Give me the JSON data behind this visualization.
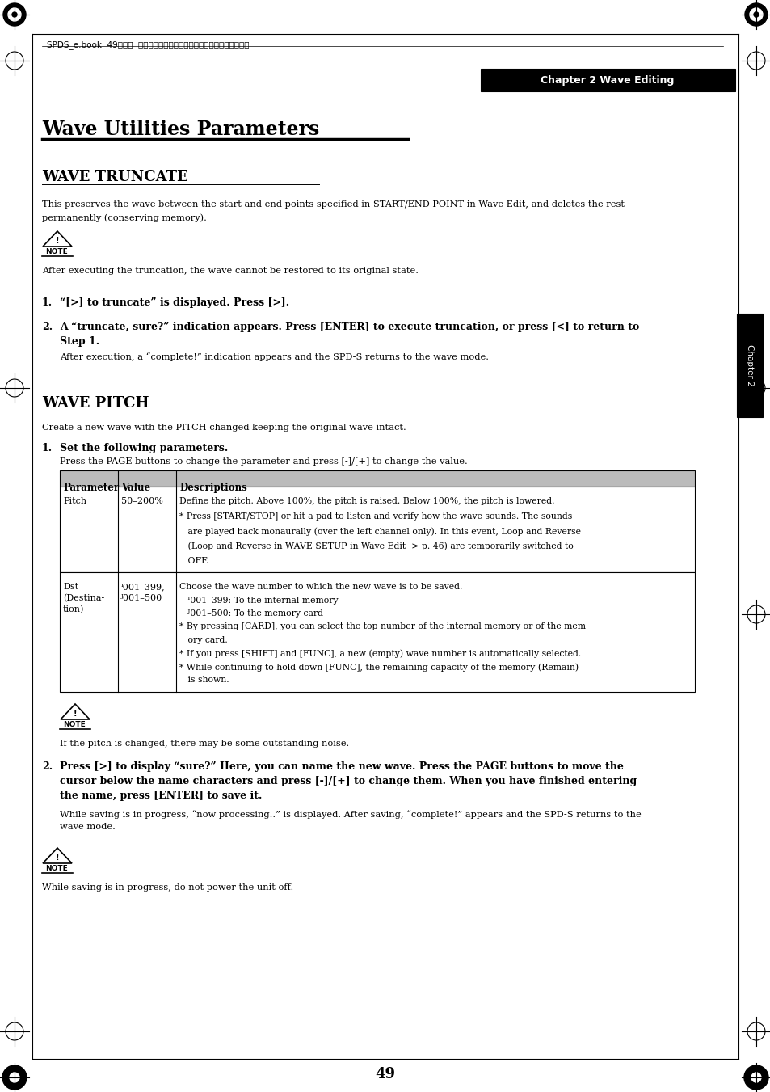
{
  "bg_color": "#ffffff",
  "page_number": "49",
  "header_text": "SPDS_e.book  49ページ  ２００４年４月１９日　月曜日　午前９時５８分",
  "chapter_box_text": "Chapter 2 Wave Editing",
  "chapter_sidebar_text": "Chapter 2",
  "page_title": "Wave Utilities Parameters",
  "section1_title": "WAVE TRUNCATE",
  "section1_body": "This preserves the wave between the start and end points specified in START/END POINT in Wave Edit, and deletes the rest\npermanently (conserving memory).",
  "note1_text": "After executing the truncation, the wave cannot be restored to its original state.",
  "step1_text": "“[>] to truncate” is displayed. Press [>].",
  "step2_text": "A “truncate, sure?” indication appears. Press [ENTER] to execute truncation, or press [<] to return to",
  "step2_text2": "Step 1.",
  "step2_body": "After execution, a “complete!” indication appears and the SPD-S returns to the wave mode.",
  "section2_title": "WAVE PITCH",
  "section2_body": "Create a new wave with the PITCH changed keeping the original wave intact.",
  "step3_text": "Set the following parameters.",
  "step3_body": "Press the PAGE buttons to change the parameter and press [-]/[+] to change the value.",
  "table_headers": [
    "Parameter",
    "Value",
    "Descriptions"
  ],
  "table_row1_col1": "Pitch",
  "table_row1_col2": "50–200%",
  "table_row1_col3_lines": [
    "Define the pitch. Above 100%, the pitch is raised. Below 100%, the pitch is lowered.",
    "* Press [START/STOP] or hit a pad to listen and verify how the wave sounds. The sounds",
    "   are played back monaurally (over the left channel only). In this event, Loop and Reverse",
    "   (Loop and Reverse in WAVE SETUP in Wave Edit -> p. 46) are temporarily switched to",
    "   OFF."
  ],
  "table_row2_col1_lines": [
    "Dst",
    "(Destina-",
    "tion)"
  ],
  "table_row2_col2_lines": [
    "ᴵ001–399,",
    "ᴶ001–500"
  ],
  "table_row2_col3_lines": [
    "Choose the wave number to which the new wave is to be saved.",
    "   ᴵ001–399: To the internal memory",
    "   ᴶ001–500: To the memory card",
    "* By pressing [CARD], you can select the top number of the internal memory or of the mem-",
    "   ory card.",
    "* If you press [SHIFT] and [FUNC], a new (empty) wave number is automatically selected.",
    "* While continuing to hold down [FUNC], the remaining capacity of the memory (Remain)",
    "   is shown."
  ],
  "note2_text": "If the pitch is changed, there may be some outstanding noise.",
  "step4_text_lines": [
    "Press [>] to display “sure?” Here, you can name the new wave. Press the PAGE buttons to move the",
    "cursor below the name characters and press [-]/[+] to change them. When you have finished entering",
    "the name, press [ENTER] to save it."
  ],
  "step4_body_lines": [
    "While saving is in progress, “now processing..” is displayed. After saving, “complete!” appears and the SPD-S returns to the",
    "wave mode."
  ],
  "note3_text": "While saving is in progress, do not power the unit off."
}
